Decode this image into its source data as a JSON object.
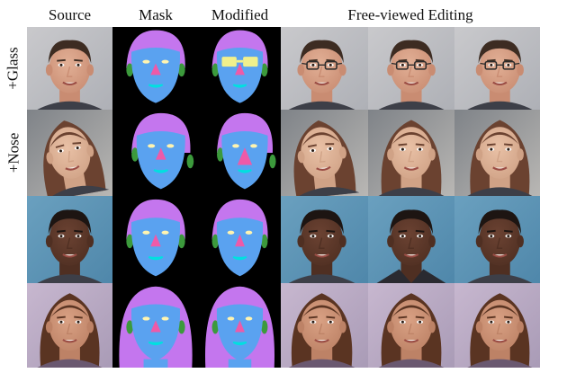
{
  "columns": [
    "Source",
    "Mask",
    "Modified",
    "Free-viewed Editing"
  ],
  "rows": [
    "+Glass",
    "+Nose",
    "",
    ""
  ],
  "colors": {
    "mask_background": "#000000",
    "mask_hair": "#c476ee",
    "mask_skin": "#5aa2f0",
    "mask_ear": "#3c9a3c",
    "mask_nose": "#ee5aa8",
    "mask_eyes": "#fff4b0",
    "mask_glasses": "#f1f08c",
    "mask_mouth": "#00e0e0"
  }
}
